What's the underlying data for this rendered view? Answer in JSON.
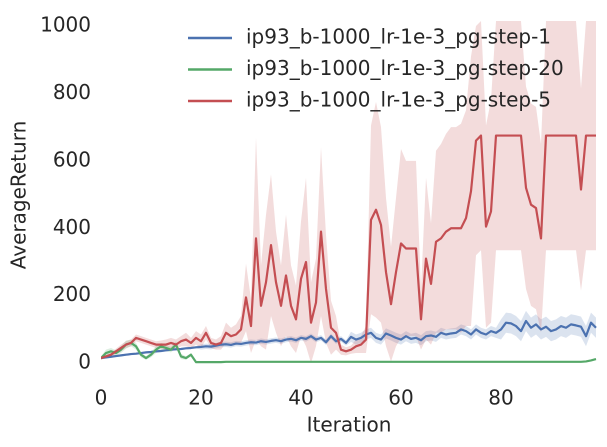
{
  "chart_data": {
    "type": "line",
    "x_label": "Iteration",
    "y_label": "AverageReturn",
    "xlim": [
      0,
      99
    ],
    "ylim": [
      -50,
      1000
    ],
    "xticks": [
      0,
      20,
      40,
      60,
      80
    ],
    "yticks": [
      0,
      200,
      400,
      600,
      800,
      1000
    ],
    "grid": false,
    "legend": "upper right",
    "band_opacity": 0.2,
    "x": [
      0,
      1,
      2,
      3,
      4,
      5,
      6,
      7,
      8,
      9,
      10,
      11,
      12,
      13,
      14,
      15,
      16,
      17,
      18,
      19,
      20,
      21,
      22,
      23,
      24,
      25,
      26,
      27,
      28,
      29,
      30,
      31,
      32,
      33,
      34,
      35,
      36,
      37,
      38,
      39,
      40,
      41,
      42,
      43,
      44,
      45,
      46,
      47,
      48,
      49,
      50,
      51,
      52,
      53,
      54,
      55,
      56,
      57,
      58,
      59,
      60,
      61,
      62,
      63,
      64,
      65,
      66,
      67,
      68,
      69,
      70,
      71,
      72,
      73,
      74,
      75,
      76,
      77,
      78,
      79,
      80,
      81,
      82,
      83,
      84,
      85,
      86,
      87,
      88,
      89,
      90,
      91,
      92,
      93,
      94,
      95,
      96,
      97,
      98,
      99
    ],
    "series": [
      {
        "name": "ip93_b-1000_lr-1e-3_pg-step-1",
        "color": "#4c72b0",
        "values": [
          15,
          17,
          19,
          21,
          23,
          25,
          27,
          28,
          30,
          32,
          33,
          35,
          36,
          38,
          40,
          41,
          42,
          44,
          45,
          47,
          48,
          50,
          49,
          52,
          55,
          56,
          54,
          58,
          57,
          60,
          62,
          61,
          65,
          63,
          66,
          68,
          65,
          70,
          72,
          68,
          75,
          72,
          80,
          70,
          75,
          62,
          80,
          65,
          72,
          60,
          78,
          70,
          75,
          85,
          90,
          75,
          70,
          88,
          82,
          75,
          70,
          80,
          72,
          75,
          68,
          80,
          82,
          78,
          90,
          85,
          88,
          90,
          100,
          95,
          85,
          100,
          90,
          85,
          95,
          90,
          100,
          120,
          118,
          110,
          95,
          125,
          105,
          115,
          100,
          108,
          95,
          100,
          110,
          105,
          115,
          112,
          108,
          80,
          120,
          105
        ],
        "error": [
          3,
          3,
          3,
          3,
          3,
          3,
          3,
          3,
          3,
          3,
          3,
          3,
          3,
          3,
          3,
          3,
          3,
          3,
          3,
          3,
          8,
          8,
          8,
          8,
          8,
          8,
          8,
          8,
          8,
          8,
          8,
          8,
          8,
          8,
          8,
          8,
          8,
          8,
          8,
          8,
          8,
          8,
          8,
          8,
          8,
          8,
          8,
          8,
          8,
          8,
          15,
          15,
          15,
          15,
          15,
          15,
          15,
          15,
          15,
          15,
          15,
          15,
          15,
          15,
          15,
          15,
          15,
          15,
          15,
          15,
          15,
          15,
          15,
          15,
          15,
          15,
          15,
          15,
          15,
          15,
          30,
          30,
          30,
          30,
          30,
          30,
          30,
          30,
          30,
          30,
          30,
          30,
          30,
          30,
          30,
          30,
          30,
          30,
          30,
          30
        ]
      },
      {
        "name": "ip93_b-1000_lr-1e-3_pg-step-20",
        "color": "#55a868",
        "values": [
          15,
          30,
          35,
          30,
          40,
          55,
          60,
          50,
          25,
          15,
          25,
          40,
          50,
          45,
          40,
          55,
          20,
          15,
          25,
          3,
          3,
          3,
          3,
          3,
          3,
          4,
          4,
          4,
          4,
          4,
          4,
          4,
          4,
          4,
          4,
          4,
          4,
          4,
          4,
          4,
          4,
          4,
          4,
          4,
          4,
          4,
          4,
          4,
          4,
          4,
          4,
          4,
          4,
          4,
          4,
          4,
          4,
          4,
          4,
          4,
          4,
          4,
          4,
          4,
          4,
          4,
          4,
          4,
          4,
          4,
          4,
          4,
          4,
          4,
          4,
          4,
          4,
          4,
          4,
          4,
          4,
          4,
          4,
          4,
          4,
          4,
          4,
          4,
          4,
          4,
          4,
          4,
          4,
          4,
          4,
          4,
          4,
          5,
          8,
          12
        ],
        "error": [
          5,
          10,
          10,
          8,
          10,
          12,
          10,
          10,
          8,
          5,
          8,
          10,
          10,
          10,
          8,
          10,
          8,
          5,
          5,
          2,
          2,
          2,
          2,
          2,
          2,
          2,
          2,
          2,
          2,
          2,
          2,
          2,
          2,
          2,
          2,
          2,
          2,
          2,
          2,
          2,
          2,
          2,
          2,
          2,
          2,
          2,
          2,
          2,
          2,
          2,
          2,
          2,
          2,
          2,
          2,
          2,
          2,
          2,
          2,
          2,
          2,
          2,
          2,
          2,
          2,
          2,
          2,
          2,
          2,
          2,
          2,
          2,
          2,
          2,
          2,
          2,
          2,
          2,
          2,
          2,
          2,
          2,
          2,
          2,
          2,
          2,
          2,
          2,
          2,
          2,
          2,
          2,
          2,
          2,
          2,
          2,
          2,
          2,
          2,
          2
        ]
      },
      {
        "name": "ip93_b-1000_lr-1e-3_pg-step-5",
        "color": "#c44e52",
        "values": [
          15,
          20,
          25,
          35,
          45,
          55,
          60,
          75,
          70,
          65,
          60,
          55,
          55,
          55,
          60,
          55,
          65,
          70,
          60,
          75,
          65,
          90,
          60,
          55,
          60,
          90,
          80,
          85,
          100,
          195,
          110,
          370,
          170,
          240,
          350,
          240,
          170,
          260,
          170,
          130,
          250,
          300,
          120,
          180,
          390,
          220,
          105,
          90,
          40,
          35,
          40,
          50,
          55,
          70,
          425,
          455,
          410,
          270,
          175,
          270,
          355,
          340,
          340,
          340,
          130,
          310,
          235,
          360,
          370,
          390,
          400,
          400,
          400,
          430,
          510,
          660,
          675,
          405,
          450,
          675,
          675,
          675,
          675,
          675,
          675,
          520,
          470,
          460,
          370,
          675,
          675,
          675,
          675,
          675,
          675,
          675,
          515,
          675,
          675,
          675
        ],
        "error": [
          5,
          5,
          6,
          8,
          10,
          10,
          10,
          10,
          10,
          10,
          10,
          10,
          12,
          15,
          15,
          15,
          15,
          20,
          15,
          20,
          20,
          20,
          15,
          15,
          20,
          30,
          25,
          30,
          40,
          100,
          80,
          300,
          120,
          200,
          210,
          150,
          120,
          180,
          120,
          100,
          170,
          250,
          120,
          130,
          250,
          160,
          80,
          50,
          15,
          12,
          12,
          20,
          25,
          40,
          280,
          320,
          290,
          220,
          170,
          220,
          280,
          260,
          260,
          260,
          90,
          240,
          180,
          270,
          280,
          290,
          300,
          300,
          310,
          320,
          400,
          340,
          340,
          300,
          330,
          340,
          340,
          340,
          340,
          340,
          340,
          300,
          300,
          300,
          280,
          340,
          340,
          340,
          340,
          340,
          340,
          340,
          300,
          340,
          340,
          340
        ]
      }
    ]
  }
}
